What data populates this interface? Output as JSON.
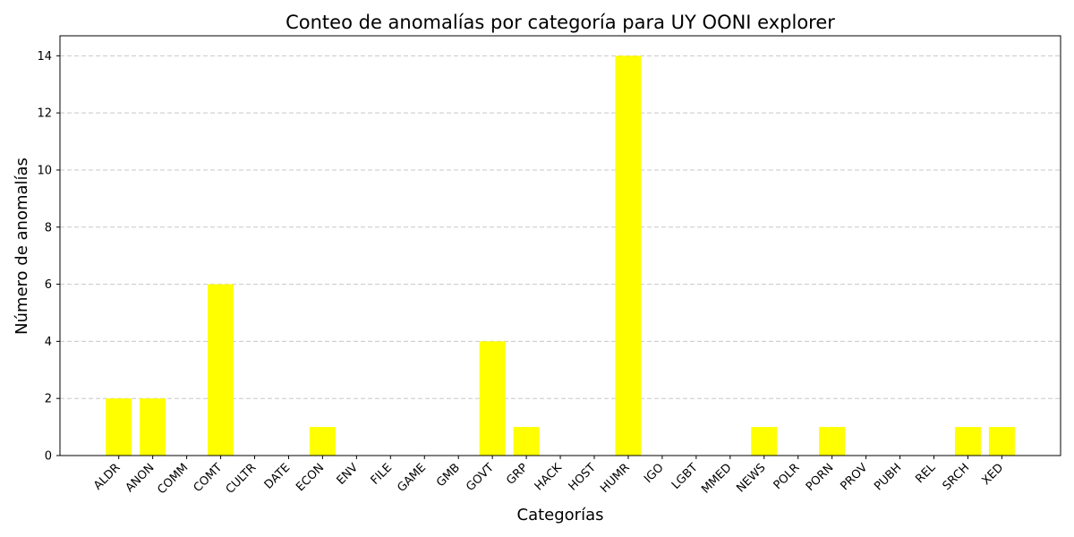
{
  "chart_data": {
    "type": "bar",
    "title": "Conteo de anomalías por categoría para UY OONI explorer",
    "xlabel": "Categorías",
    "ylabel": "Número de anomalías",
    "categories": [
      "ALDR",
      "ANON",
      "COMM",
      "COMT",
      "CULTR",
      "DATE",
      "ECON",
      "ENV",
      "FILE",
      "GAME",
      "GMB",
      "GOVT",
      "GRP",
      "HACK",
      "HOST",
      "HUMR",
      "IGO",
      "LGBT",
      "MMED",
      "NEWS",
      "POLR",
      "PORN",
      "PROV",
      "PUBH",
      "REL",
      "SRCH",
      "XED"
    ],
    "values": [
      2,
      2,
      0,
      6,
      0,
      0,
      1,
      0,
      0,
      0,
      0,
      4,
      1,
      0,
      0,
      14,
      0,
      0,
      0,
      1,
      0,
      1,
      0,
      0,
      0,
      1,
      1
    ],
    "ylim": [
      0,
      14.7
    ],
    "yticks": [
      0,
      2,
      4,
      6,
      8,
      10,
      12,
      14
    ],
    "grid": "y-dashed",
    "bar_color": "#ffff00",
    "grid_color": "#c8c8c8"
  }
}
